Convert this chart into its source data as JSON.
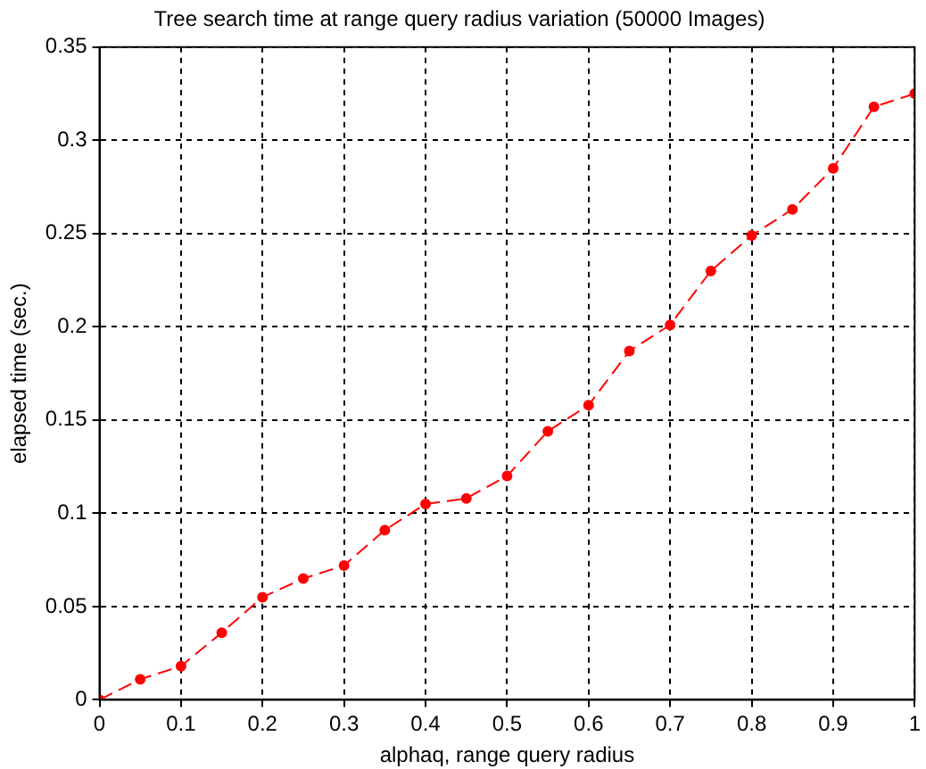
{
  "chart_data": {
    "type": "line",
    "title": "Tree search time at range query radius variation (50000 Images)",
    "xlabel": "alphaq, range query radius",
    "ylabel": "elapsed time (sec.)",
    "x": [
      0,
      0.05,
      0.1,
      0.15,
      0.2,
      0.25,
      0.3,
      0.35,
      0.4,
      0.45,
      0.5,
      0.55,
      0.6,
      0.65,
      0.7,
      0.75,
      0.8,
      0.85,
      0.9,
      0.95,
      1
    ],
    "series": [
      {
        "color": "#ff0000",
        "values": [
          0,
          0.011,
          0.018,
          0.036,
          0.055,
          0.065,
          0.072,
          0.091,
          0.105,
          0.108,
          0.12,
          0.144,
          0.158,
          0.187,
          0.201,
          0.23,
          0.249,
          0.263,
          0.285,
          0.318,
          0.325
        ]
      }
    ],
    "xlim": [
      0,
      1
    ],
    "xticks": [
      0,
      0.1,
      0.2,
      0.3,
      0.4,
      0.5,
      0.6,
      0.7,
      0.8,
      0.9,
      1
    ],
    "ylim": [
      0,
      0.35
    ],
    "yticks": [
      0,
      0.05,
      0.1,
      0.15,
      0.2,
      0.25,
      0.3,
      0.35
    ],
    "grid": true,
    "legend": false,
    "marker": "circle",
    "line_style": "dashed"
  }
}
